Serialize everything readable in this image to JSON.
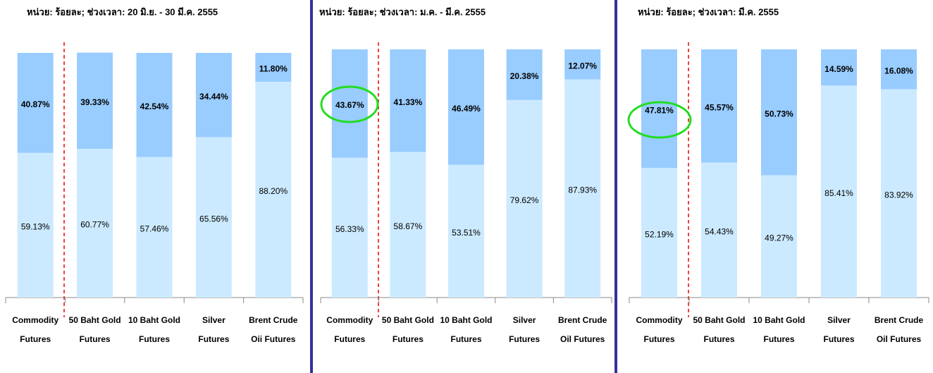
{
  "chart_data": [
    {
      "type": "bar",
      "stacked": true,
      "title": "หน่วย: ร้อยละ;  ช่วงเวลา: 20 มิ.ย. - 30 มี.ค. 2555",
      "categories": [
        [
          "Commodity",
          "Futures"
        ],
        [
          "50 Baht Gold",
          "Futures"
        ],
        [
          "10 Baht Gold",
          "Futures"
        ],
        [
          "Silver",
          "Futures"
        ],
        [
          "Brent Crude",
          "Oii Futures"
        ]
      ],
      "series": [
        {
          "color": "#cceaff",
          "values": [
            59.13,
            60.77,
            57.46,
            65.56,
            88.2
          ],
          "value_labels": [
            "59.13%",
            "60.77%",
            "57.46%",
            "65.56%",
            "88.20%"
          ]
        },
        {
          "color": "#99ccff",
          "values": [
            40.87,
            39.33,
            42.54,
            34.44,
            11.8
          ],
          "value_labels": [
            "40.87%",
            "39.33%",
            "42.54%",
            "34.44%",
            "11.80%"
          ]
        }
      ],
      "ylim": [
        0,
        100
      ]
    },
    {
      "type": "bar",
      "stacked": true,
      "title": "หน่วย: ร้อยละ;  ช่วงเวลา: ม.ค. - มี.ค. 2555",
      "categories": [
        [
          "Commodity",
          "Futures"
        ],
        [
          "50 Baht Gold",
          "Futures"
        ],
        [
          "10 Baht Gold",
          "Futures"
        ],
        [
          "Silver",
          "Futures"
        ],
        [
          "Brent Crude",
          "Oil Futures"
        ]
      ],
      "series": [
        {
          "color": "#cceaff",
          "values": [
            56.33,
            58.67,
            53.51,
            79.62,
            87.93
          ],
          "value_labels": [
            "56.33%",
            "58.67%",
            "53.51%",
            "79.62%",
            "87.93%"
          ]
        },
        {
          "color": "#99ccff",
          "values": [
            43.67,
            41.33,
            46.49,
            20.38,
            12.07
          ],
          "value_labels": [
            "43.67%",
            "41.33%",
            "46.49%",
            "20.38%",
            "12.07%"
          ]
        }
      ],
      "ylim": [
        0,
        100
      ]
    },
    {
      "type": "bar",
      "stacked": true,
      "title": "หน่วย: ร้อยละ;  ช่วงเวลา: มี.ค. 2555",
      "categories": [
        [
          "Commodity",
          "Futures"
        ],
        [
          "50 Baht Gold",
          "Futures"
        ],
        [
          "10 Baht Gold",
          "Futures"
        ],
        [
          "Silver",
          "Futures"
        ],
        [
          "Brent Crude",
          "Oil Futures"
        ]
      ],
      "series": [
        {
          "color": "#cceaff",
          "values": [
            52.19,
            54.43,
            49.27,
            85.41,
            83.92
          ],
          "value_labels": [
            "52.19%",
            "54.43%",
            "49.27%",
            "85.41%",
            "83.92%"
          ]
        },
        {
          "color": "#99ccff",
          "values": [
            47.81,
            45.57,
            50.73,
            14.59,
            16.08
          ],
          "value_labels": [
            "47.81%",
            "45.57%",
            "50.73%",
            "14.59%",
            "16.08%"
          ]
        }
      ],
      "ylim": [
        0,
        100
      ]
    }
  ]
}
